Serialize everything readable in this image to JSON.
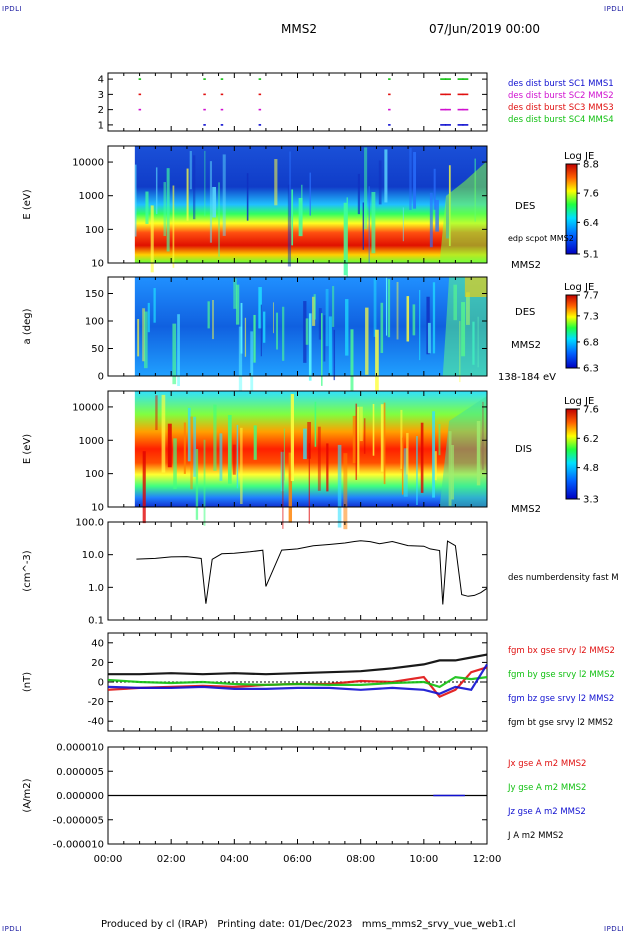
{
  "corners": {
    "tl": "IPDLI",
    "tr": "IPDLI",
    "bl": "IPDLI",
    "br": "IPDLI"
  },
  "header": {
    "spacecraft": "MMS2",
    "date": "07/Jun/2019 00:00"
  },
  "footer": "Produced by cl (IRAP)   Printing date: 01/Dec/2023   mms_mms2_srvy_vue_web1.cl",
  "colors": {
    "blue": "#1010d0",
    "magenta": "#d010d0",
    "red": "#e01010",
    "green": "#10c010",
    "black": "#000000"
  },
  "chart_data": [
    {
      "type": "scatter",
      "id": "burst",
      "ylabel": "",
      "yticks": [
        "1",
        "2",
        "3",
        "4"
      ],
      "ylim": [
        0.6,
        4.4
      ],
      "legend": [
        {
          "text": "des dist burst SC1 MMS1",
          "color": "#1010d0"
        },
        {
          "text": "des dist burst SC2 MMS2",
          "color": "#d010d0"
        },
        {
          "text": "des dist burst SC3 MMS3",
          "color": "#e01010"
        },
        {
          "text": "des dist burst SC4 MMS4",
          "color": "#10c010"
        }
      ],
      "series": [
        {
          "name": "des dist burst SC4 MMS4",
          "y": 4,
          "x": [
            1.0,
            3.05,
            3.6,
            4.8,
            8.9,
            10.55,
            10.7,
            11.1,
            11.25
          ]
        },
        {
          "name": "des dist burst SC3 MMS3",
          "y": 3,
          "x": [
            1.0,
            3.05,
            3.6,
            4.8,
            8.9,
            10.55,
            10.7,
            11.1,
            11.25
          ]
        },
        {
          "name": "des dist burst SC2 MMS2",
          "y": 2,
          "x": [
            1.0,
            3.05,
            3.6,
            4.8,
            8.9,
            10.55,
            10.7,
            11.1,
            11.25
          ]
        },
        {
          "name": "des dist burst SC1 MMS1",
          "y": 1,
          "x": [
            3.05,
            3.6,
            4.8,
            8.9,
            10.55,
            10.7,
            11.1,
            11.25
          ]
        }
      ]
    },
    {
      "type": "heatmap",
      "id": "des_energy",
      "ylabel": "E (eV)",
      "scale": "log",
      "ylim": [
        10,
        30000
      ],
      "yticks": [
        "10",
        "100",
        "1000",
        "10000"
      ],
      "labels": [
        "DES",
        "edp scpot MMS2",
        "MMS2"
      ],
      "colorbar": {
        "title": "Log JE",
        "ticks": [
          "8.8",
          "7.6",
          "6.4",
          "5.1"
        ],
        "range": [
          5.1,
          8.8
        ]
      },
      "data_start_hour": 0.85
    },
    {
      "type": "heatmap",
      "id": "des_pitch",
      "ylabel": "a (deg)",
      "ylim": [
        0,
        180
      ],
      "yticks": [
        "0",
        "50",
        "100",
        "150"
      ],
      "labels": [
        "DES",
        "MMS2",
        "138-184 eV"
      ],
      "colorbar": {
        "title": "Log JE",
        "ticks": [
          "7.7",
          "7.3",
          "6.8",
          "6.3"
        ],
        "range": [
          6.3,
          7.7
        ]
      },
      "data_start_hour": 0.85
    },
    {
      "type": "heatmap",
      "id": "dis_energy",
      "ylabel": "E (eV)",
      "scale": "log",
      "ylim": [
        10,
        30000
      ],
      "yticks": [
        "10",
        "100",
        "1000",
        "10000"
      ],
      "labels": [
        "DIS",
        "MMS2"
      ],
      "colorbar": {
        "title": "Log JE",
        "ticks": [
          "7.6",
          "6.2",
          "4.8",
          "3.3"
        ],
        "range": [
          3.3,
          7.6
        ]
      },
      "data_start_hour": 0.85
    },
    {
      "type": "line",
      "id": "density",
      "ylabel": "(cm^-3)",
      "scale": "log",
      "ylim": [
        0.1,
        100
      ],
      "yticks": [
        "0.1",
        "1.0",
        "10.0",
        "100.0"
      ],
      "legend": [
        {
          "text": "des numberdensity fast M",
          "color": "#000000"
        }
      ],
      "x": [
        0.9,
        1.5,
        2.0,
        2.5,
        2.95,
        3.1,
        3.3,
        3.6,
        4.0,
        4.5,
        4.9,
        5.0,
        5.5,
        6.0,
        6.5,
        7.0,
        7.5,
        7.8,
        8.0,
        8.3,
        8.6,
        9.0,
        9.5,
        10.0,
        10.2,
        10.5,
        10.6,
        10.75,
        11.0,
        11.2,
        11.4,
        11.6,
        11.8,
        12.0
      ],
      "values": [
        7,
        8,
        8.5,
        9,
        8,
        0.3,
        7,
        10,
        11,
        12,
        13,
        1.0,
        14,
        16,
        18,
        20,
        23,
        26,
        28,
        24,
        22,
        24,
        20,
        18,
        16,
        14,
        0.3,
        25,
        18,
        0.6,
        0.5,
        0.55,
        0.7,
        0.9
      ]
    },
    {
      "type": "line",
      "id": "fgm",
      "ylabel": "(nT)",
      "ylim": [
        -50,
        50
      ],
      "yticks": [
        "-40",
        "-20",
        "0",
        "20",
        "40"
      ],
      "legend": [
        {
          "text": "fgm bx gse srvy l2 MMS2",
          "color": "#e01010"
        },
        {
          "text": "fgm by gse srvy l2 MMS2",
          "color": "#10c010"
        },
        {
          "text": "fgm bz gse srvy l2 MMS2",
          "color": "#1010d0"
        },
        {
          "text": "fgm bt gse srvy l2 MMS2",
          "color": "#000000"
        }
      ],
      "x": [
        0,
        1,
        2,
        3,
        4,
        5,
        6,
        7,
        8,
        9,
        10,
        10.5,
        11,
        11.5,
        12
      ],
      "series": [
        {
          "name": "fgm bx gse srvy l2 MMS2",
          "values": [
            -8,
            -6,
            -5,
            -4,
            -5,
            -3,
            -2,
            -2,
            1,
            0,
            5,
            -15,
            -8,
            10,
            15
          ]
        },
        {
          "name": "fgm by gse srvy l2 MMS2",
          "values": [
            2,
            0,
            -1,
            0,
            -2,
            -3,
            -2,
            -3,
            -3,
            -1,
            0,
            -5,
            5,
            3,
            5
          ]
        },
        {
          "name": "fgm bz gse srvy l2 MMS2",
          "values": [
            -5,
            -6,
            -6,
            -5,
            -7,
            -7,
            -6,
            -6,
            -8,
            -6,
            -8,
            -12,
            -5,
            -8,
            18
          ]
        },
        {
          "name": "fgm bt gse srvy l2 MMS2",
          "values": [
            8,
            8,
            9,
            8,
            9,
            8,
            9,
            10,
            11,
            14,
            18,
            22,
            22,
            25,
            28
          ]
        }
      ]
    },
    {
      "type": "line",
      "id": "current",
      "ylabel": "(A/m2)",
      "ylim": [
        -0.0001,
        0.0001
      ],
      "yticks": [
        "-0.000010",
        "-0.000005",
        "0.000000",
        "0.000005",
        "0.000010"
      ],
      "legend": [
        {
          "text": "Jx gse A m2 MMS2",
          "color": "#e01010"
        },
        {
          "text": "Jy gse A m2 MMS2",
          "color": "#10c010"
        },
        {
          "text": "Jz gse A m2 MMS2",
          "color": "#1010d0"
        },
        {
          "text": "J A m2 MMS2",
          "color": "#000000"
        }
      ],
      "x": [
        0,
        12
      ],
      "values": [
        0,
        0
      ]
    },
    {
      "type": "axis",
      "id": "time_axis",
      "xticks": [
        "00:00",
        "02:00",
        "04:00",
        "06:00",
        "08:00",
        "10:00",
        "12:00"
      ],
      "xlim": [
        0,
        12
      ]
    }
  ]
}
